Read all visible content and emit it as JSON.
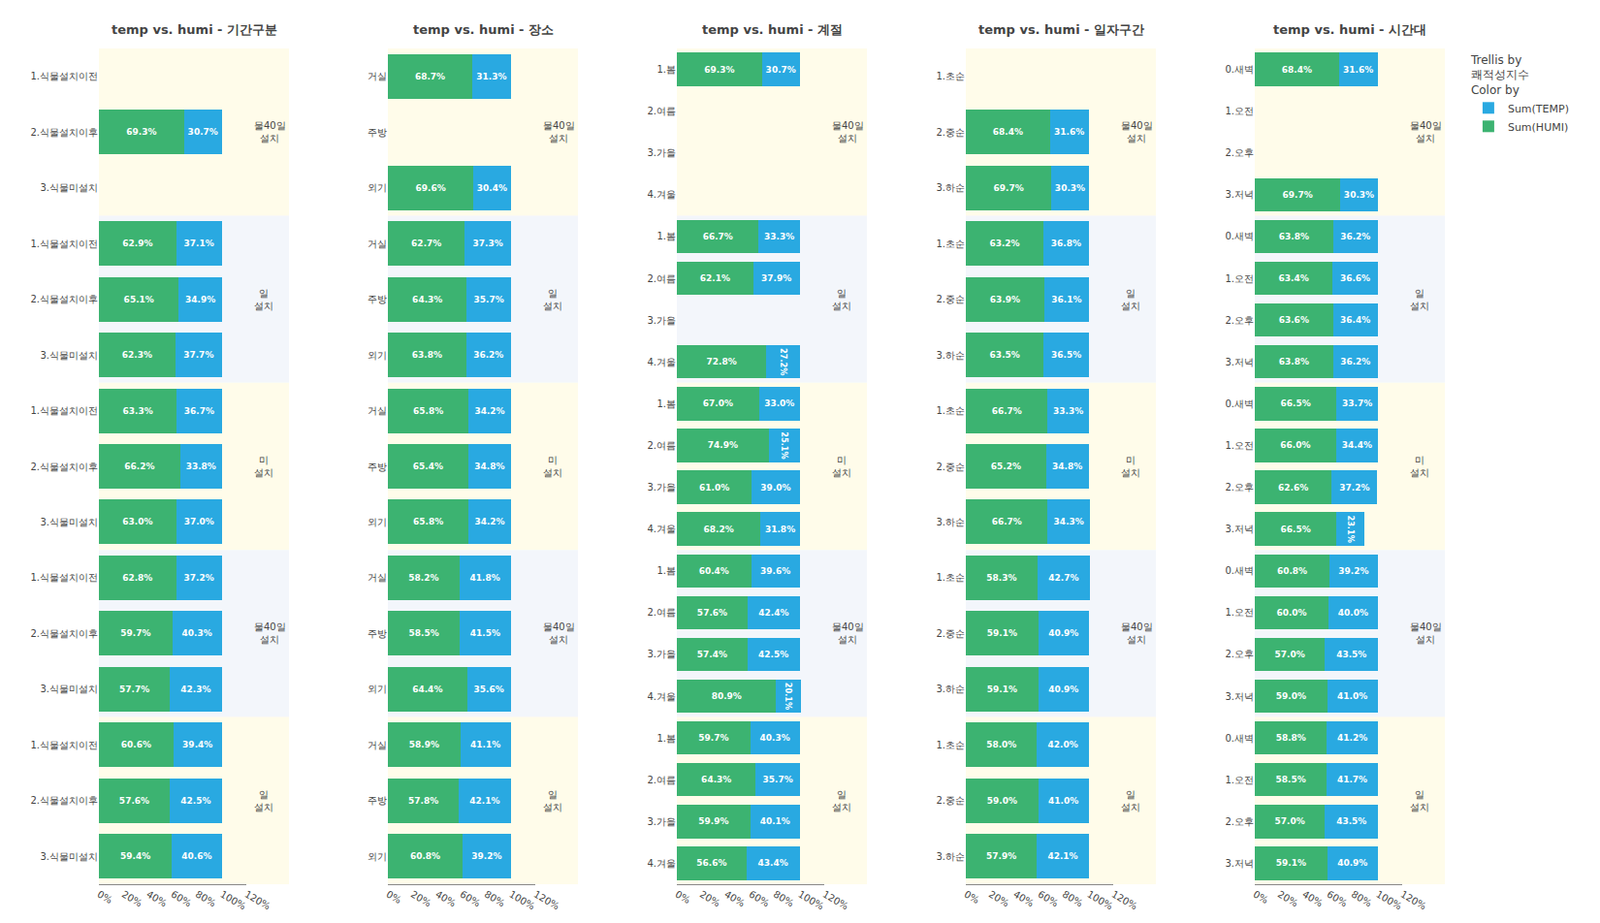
{
  "chart_data": [
    {
      "type": "bar",
      "orientation": "horizontal",
      "stacked": true,
      "data_labels": true,
      "grid": false,
      "legend": "upper right",
      "title": "temp vs. humi - 기간구분",
      "categories": [
        "1.식물설치이전",
        "2.식물설치이후",
        "3.식물미설치",
        "1.식물설치이전",
        "2.식물설치이후",
        "3.식물미설치",
        "1.식물설치이전",
        "2.식물설치이후",
        "3.식물미설치",
        "1.식물설치이전",
        "2.식물설치이후",
        "3.식물미설치",
        "1.식물설치이전",
        "2.식물설치이후",
        "3.식물미설치"
      ],
      "series": [
        {
          "name": "Sum(HUMI)",
          "color": "#3CB371",
          "values": [
            null,
            69.3,
            null,
            62.9,
            65.1,
            62.3,
            63.3,
            66.2,
            63.0,
            62.8,
            59.7,
            57.7,
            60.6,
            57.6,
            59.4
          ],
          "value_labels": [
            null,
            "69.3%",
            null,
            "62.9%",
            "65.1%",
            "62.3%",
            "63.3%",
            "66.2%",
            "63.0%",
            "62.8%",
            "59.7%",
            "57.7%",
            "60.6%",
            "57.6%",
            "59.4%"
          ]
        },
        {
          "name": "Sum(TEMP)",
          "color": "#29A9E1",
          "values": [
            null,
            30.7,
            null,
            37.1,
            34.9,
            37.7,
            36.7,
            33.8,
            37.0,
            37.2,
            40.3,
            42.3,
            39.4,
            42.5,
            40.6
          ],
          "value_labels": [
            null,
            "30.7%",
            null,
            "37.1%",
            "34.9%",
            "37.7%",
            "36.7%",
            "33.8%",
            "37.0%",
            "37.2%",
            "40.3%",
            "42.3%",
            "39.4%",
            "42.5%",
            "40.6%"
          ]
        }
      ],
      "xlim": [
        0,
        120
      ],
      "xticks": [
        {
          "value": 0,
          "label": "0%"
        },
        {
          "value": 20,
          "label": "20%"
        },
        {
          "value": 40,
          "label": "40%"
        },
        {
          "value": 60,
          "label": "60%"
        },
        {
          "value": 80,
          "label": "80%"
        },
        {
          "value": 100,
          "label": "100%"
        },
        {
          "value": 120,
          "label": "120%"
        }
      ],
      "annotations": [
        {
          "text": "Trellis by"
        },
        {
          "text": "쾌적성지수"
        },
        {
          "text": "Color by"
        },
        {
          "text": "물40일\n설치",
          "y": [
            0,
            2
          ]
        },
        {
          "text": "일\n설치",
          "y": [
            3,
            5
          ]
        },
        {
          "text": "미\n설치",
          "y": [
            6,
            8
          ]
        },
        {
          "text": "물40일\n설치",
          "y": [
            9,
            11
          ]
        },
        {
          "text": "일\n설치",
          "y": [
            12,
            14
          ]
        }
      ]
    },
    {
      "type": "bar",
      "orientation": "horizontal",
      "stacked": true,
      "data_labels": true,
      "grid": false,
      "title": "temp vs. humi - 장소",
      "categories": [
        "거실",
        "주방",
        "외기",
        "거실",
        "주방",
        "외기",
        "거실",
        "주방",
        "외기",
        "거실",
        "주방",
        "외기",
        "거실",
        "주방",
        "외기"
      ],
      "series": [
        {
          "name": "Sum(HUMI)",
          "color": "#3CB371",
          "values": [
            68.7,
            null,
            69.6,
            62.7,
            64.3,
            63.8,
            65.8,
            65.4,
            65.8,
            58.2,
            58.5,
            64.4,
            58.9,
            57.8,
            60.8
          ],
          "value_labels": [
            "68.7%",
            null,
            "69.6%",
            "62.7%",
            "64.3%",
            "63.8%",
            "65.8%",
            "65.4%",
            "65.8%",
            "58.2%",
            "58.5%",
            "64.4%",
            "58.9%",
            "57.8%",
            "60.8%"
          ]
        },
        {
          "name": "Sum(TEMP)",
          "color": "#29A9E1",
          "values": [
            31.3,
            null,
            30.4,
            37.3,
            35.7,
            36.2,
            34.2,
            34.8,
            34.2,
            41.8,
            41.5,
            35.6,
            41.1,
            42.1,
            39.2
          ],
          "value_labels": [
            "31.3%",
            null,
            "30.4%",
            "37.3%",
            "35.7%",
            "36.2%",
            "34.2%",
            "34.8%",
            "34.2%",
            "41.8%",
            "41.5%",
            "35.6%",
            "41.1%",
            "42.1%",
            "39.2%"
          ]
        }
      ],
      "xlim": [
        0,
        120
      ],
      "xticks": [
        {
          "value": 0,
          "label": "0%"
        },
        {
          "value": 20,
          "label": "20%"
        },
        {
          "value": 40,
          "label": "40%"
        },
        {
          "value": 60,
          "label": "60%"
        },
        {
          "value": 80,
          "label": "80%"
        },
        {
          "value": 100,
          "label": "100%"
        },
        {
          "value": 120,
          "label": "120%"
        }
      ],
      "annotations": [
        {
          "text": "물40일\n설치",
          "y": [
            0,
            2
          ]
        },
        {
          "text": "일\n설치",
          "y": [
            3,
            5
          ]
        },
        {
          "text": "미\n설치",
          "y": [
            6,
            8
          ]
        },
        {
          "text": "물40일\n설치",
          "y": [
            9,
            11
          ]
        },
        {
          "text": "일\n설치",
          "y": [
            12,
            14
          ]
        }
      ]
    },
    {
      "type": "bar",
      "orientation": "horizontal",
      "stacked": true,
      "data_labels": true,
      "grid": false,
      "title": "temp vs. humi - 계절",
      "categories": [
        "1.봄",
        "2.여름",
        "3.가을",
        "4.겨울",
        "1.봄",
        "2.여름",
        "3.가을",
        "4.겨울",
        "1.봄",
        "2.여름",
        "3.가을",
        "4.겨울",
        "1.봄",
        "2.여름",
        "3.가을",
        "4.겨울",
        "1.봄",
        "2.여름",
        "3.가을",
        "4.겨울"
      ],
      "series": [
        {
          "name": "Sum(HUMI)",
          "color": "#3CB371",
          "values": [
            69.3,
            null,
            null,
            null,
            66.7,
            62.1,
            null,
            72.8,
            67.0,
            74.9,
            61.0,
            68.2,
            60.4,
            57.6,
            57.4,
            80.9,
            59.7,
            64.3,
            59.9,
            56.6
          ],
          "value_labels": [
            "69.3%",
            null,
            null,
            null,
            "66.7%",
            "62.1%",
            null,
            "72.8%",
            "67.0%",
            "74.9%",
            "61.0%",
            "68.2%",
            "60.4%",
            "57.6%",
            "57.4%",
            "80.9%",
            "59.7%",
            "64.3%",
            "59.9%",
            "56.6%"
          ]
        },
        {
          "name": "Sum(TEMP)",
          "color": "#29A9E1",
          "values": [
            30.7,
            null,
            null,
            null,
            33.3,
            37.9,
            null,
            27.2,
            33.0,
            25.1,
            39.0,
            31.8,
            39.6,
            42.4,
            42.5,
            20.1,
            40.3,
            35.7,
            40.1,
            43.4
          ],
          "value_labels": [
            "30.7%",
            null,
            null,
            null,
            "33.3%",
            "37.9%",
            null,
            "27.2%",
            "33.0%",
            "25.1%",
            "39.0%",
            "31.8%",
            "39.6%",
            "42.4%",
            "42.5%",
            "20.1%",
            "40.3%",
            "35.7%",
            "40.1%",
            "43.4%"
          ]
        }
      ],
      "xlim": [
        0,
        120
      ],
      "xticks": [
        {
          "value": 0,
          "label": "0%"
        },
        {
          "value": 20,
          "label": "20%"
        },
        {
          "value": 40,
          "label": "40%"
        },
        {
          "value": 60,
          "label": "60%"
        },
        {
          "value": 80,
          "label": "80%"
        },
        {
          "value": 100,
          "label": "100%"
        },
        {
          "value": 120,
          "label": "120%"
        }
      ],
      "annotations": [
        {
          "text": "물40일\n설치",
          "y": [
            0,
            3
          ]
        },
        {
          "text": "일\n설치",
          "y": [
            4,
            7
          ]
        },
        {
          "text": "미\n설치",
          "y": [
            8,
            11
          ]
        },
        {
          "text": "물40일\n설치",
          "y": [
            12,
            15
          ]
        },
        {
          "text": "일\n설치",
          "y": [
            16,
            19
          ]
        }
      ]
    },
    {
      "type": "bar",
      "orientation": "horizontal",
      "stacked": true,
      "data_labels": true,
      "grid": false,
      "title": "temp vs. humi - 일자구간",
      "categories": [
        "1.초순",
        "2.중순",
        "3.하순",
        "1.초순",
        "2.중순",
        "3.하순",
        "1.초순",
        "2.중순",
        "3.하순",
        "1.초순",
        "2.중순",
        "3.하순",
        "1.초순",
        "2.중순",
        "3.하순"
      ],
      "series": [
        {
          "name": "Sum(HUMI)",
          "color": "#3CB371",
          "values": [
            null,
            68.4,
            69.7,
            63.2,
            63.9,
            63.5,
            66.7,
            65.2,
            66.7,
            58.3,
            59.1,
            59.1,
            58.0,
            59.0,
            57.9
          ],
          "value_labels": [
            null,
            "68.4%",
            "69.7%",
            "63.2%",
            "63.9%",
            "63.5%",
            "66.7%",
            "65.2%",
            "66.7%",
            "58.3%",
            "59.1%",
            "59.1%",
            "58.0%",
            "59.0%",
            "57.9%"
          ]
        },
        {
          "name": "Sum(TEMP)",
          "color": "#29A9E1",
          "values": [
            null,
            31.6,
            30.3,
            36.8,
            36.1,
            36.5,
            33.3,
            34.8,
            34.3,
            42.7,
            40.9,
            40.9,
            42.0,
            41.0,
            42.1
          ],
          "value_labels": [
            null,
            "31.6%",
            "30.3%",
            "36.8%",
            "36.1%",
            "36.5%",
            "33.3%",
            "34.8%",
            "34.3%",
            "42.7%",
            "40.9%",
            "40.9%",
            "42.0%",
            "41.0%",
            "42.1%"
          ]
        }
      ],
      "xlim": [
        0,
        120
      ],
      "xticks": [
        {
          "value": 0,
          "label": "0%"
        },
        {
          "value": 20,
          "label": "20%"
        },
        {
          "value": 40,
          "label": "40%"
        },
        {
          "value": 60,
          "label": "60%"
        },
        {
          "value": 80,
          "label": "80%"
        },
        {
          "value": 100,
          "label": "100%"
        },
        {
          "value": 120,
          "label": "120%"
        }
      ],
      "annotations": [
        {
          "text": "물40일\n설치",
          "y": [
            0,
            2
          ]
        },
        {
          "text": "일\n설치",
          "y": [
            3,
            5
          ]
        },
        {
          "text": "미\n설치",
          "y": [
            6,
            8
          ]
        },
        {
          "text": "물40일\n설치",
          "y": [
            9,
            11
          ]
        },
        {
          "text": "일\n설치",
          "y": [
            12,
            14
          ]
        }
      ]
    },
    {
      "type": "bar",
      "orientation": "horizontal",
      "stacked": true,
      "data_labels": true,
      "grid": false,
      "title": "temp vs. humi - 시간대",
      "categories": [
        "0.새벽",
        "1.오전",
        "2.오후",
        "3.저녁",
        "0.새벽",
        "1.오전",
        "2.오후",
        "3.저녁",
        "0.새벽",
        "1.오전",
        "2.오후",
        "3.저녁",
        "0.새벽",
        "1.오전",
        "2.오후",
        "3.저녁",
        "0.새벽",
        "1.오전",
        "2.오후",
        "3.저녁"
      ],
      "series": [
        {
          "name": "Sum(HUMI)",
          "color": "#3CB371",
          "values": [
            68.4,
            null,
            null,
            69.7,
            63.8,
            63.4,
            63.6,
            63.8,
            66.5,
            66.0,
            62.6,
            66.5,
            60.8,
            60.0,
            57.0,
            59.0,
            58.8,
            58.5,
            57.0,
            59.1
          ],
          "value_labels": [
            "68.4%",
            null,
            null,
            "69.7%",
            "63.8%",
            "63.4%",
            "63.6%",
            "63.8%",
            "66.5%",
            "66.0%",
            "62.6%",
            "66.5%",
            "60.8%",
            "60.0%",
            "57.0%",
            "59.0%",
            "58.8%",
            "58.5%",
            "57.0%",
            "59.1%"
          ]
        },
        {
          "name": "Sum(TEMP)",
          "color": "#29A9E1",
          "values": [
            31.6,
            null,
            null,
            30.3,
            36.2,
            36.6,
            36.4,
            36.2,
            33.7,
            34.4,
            37.2,
            23.1,
            39.2,
            40.0,
            43.5,
            41.0,
            41.2,
            41.7,
            43.5,
            40.9
          ],
          "value_labels": [
            "31.6%",
            null,
            null,
            "30.3%",
            "36.2%",
            "36.6%",
            "36.4%",
            "36.2%",
            "33.7%",
            "34.4%",
            "37.2%",
            "23.1%",
            "39.2%",
            "40.0%",
            "43.5%",
            "41.0%",
            "41.2%",
            "41.7%",
            "43.5%",
            "40.9%"
          ]
        }
      ],
      "xlim": [
        0,
        120
      ],
      "xticks": [
        {
          "value": 0,
          "label": "0%"
        },
        {
          "value": 20,
          "label": "20%"
        },
        {
          "value": 40,
          "label": "40%"
        },
        {
          "value": 60,
          "label": "60%"
        },
        {
          "value": 80,
          "label": "80%"
        },
        {
          "value": 100,
          "label": "100%"
        },
        {
          "value": 120,
          "label": "120%"
        }
      ],
      "annotations": [
        {
          "text": "물40일\n설치",
          "y": [
            0,
            3
          ]
        },
        {
          "text": "일\n설치",
          "y": [
            4,
            7
          ]
        },
        {
          "text": "미\n설치",
          "y": [
            8,
            11
          ]
        },
        {
          "text": "물40일\n설치",
          "y": [
            12,
            15
          ]
        },
        {
          "text": "일\n설치",
          "y": [
            16,
            19
          ]
        }
      ]
    }
  ]
}
